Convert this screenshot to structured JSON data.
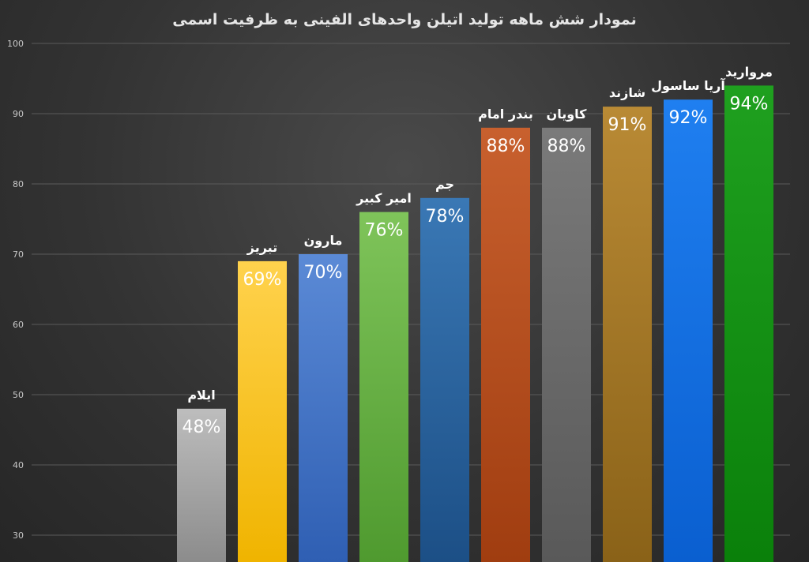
{
  "chart_data": {
    "type": "bar",
    "title": "نمودار شش ماهه تولید اتیلن واحدهای الفینی به ظرفیت اسمی",
    "xlabel": "",
    "ylabel": "",
    "ylim": [
      30,
      100
    ],
    "yticks": [
      30,
      40,
      50,
      60,
      70,
      80,
      90,
      100
    ],
    "grid": true,
    "categories": [
      "ایلام",
      "تبریز",
      "مارون",
      "امیر کبیر",
      "جم",
      "بندر امام",
      "کاویان",
      "شازند",
      "آریا ساسول",
      "مروارید"
    ],
    "values": [
      48,
      69,
      70,
      76,
      78,
      88,
      88,
      91,
      92,
      94
    ],
    "data_labels": [
      "48%",
      "69%",
      "70%",
      "76%",
      "78%",
      "88%",
      "88%",
      "91%",
      "92%",
      "94%"
    ],
    "colors": [
      [
        "#bdbdbd",
        "#8c8c8c"
      ],
      [
        "#ffd24d",
        "#f0b400"
      ],
      [
        "#5b8ad6",
        "#2f5fb3"
      ],
      [
        "#7fc45a",
        "#4f9a2f"
      ],
      [
        "#3a78b5",
        "#1c4f86"
      ],
      [
        "#c8602e",
        "#a03d10"
      ],
      [
        "#7a7a7a",
        "#595959"
      ],
      [
        "#b98a35",
        "#8a6218"
      ],
      [
        "#1f7ff0",
        "#0a5fd0"
      ],
      [
        "#1fa01f",
        "#0a800a"
      ]
    ]
  }
}
